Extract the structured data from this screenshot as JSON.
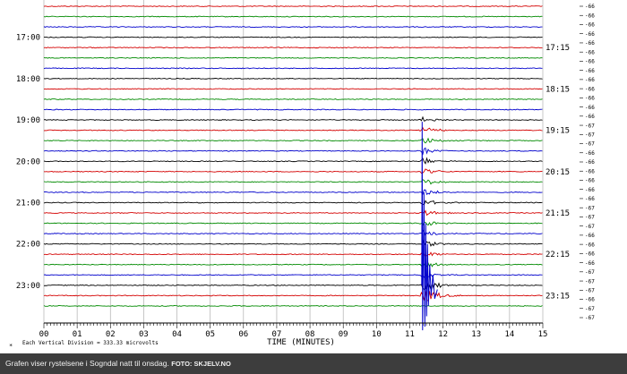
{
  "chart_data": {
    "type": "line",
    "title": "",
    "xlabel": "TIME (MINUTES)",
    "xlim": [
      0,
      15
    ],
    "x_ticks": [
      "00",
      "01",
      "02",
      "03",
      "04",
      "05",
      "06",
      "07",
      "08",
      "09",
      "10",
      "11",
      "12",
      "13",
      "14",
      "15"
    ],
    "left_hour_labels": [
      "17:00",
      "18:00",
      "19:00",
      "20:00",
      "21:00",
      "22:00",
      "23:00"
    ],
    "right_hour_labels": [
      "17:15",
      "18:15",
      "19:15",
      "20:15",
      "21:15",
      "22:15",
      "23:15"
    ],
    "trace_count": 30,
    "trace_colors": [
      "#d40000",
      "#008a00",
      "#0000cc",
      "#000000"
    ],
    "gain_labels": [
      "-66",
      "-66",
      "-66",
      "-66",
      "-66",
      "-66",
      "-66",
      "-66",
      "-66",
      "-66",
      "-66",
      "-66",
      "-66",
      "-67",
      "-67",
      "-67",
      "-66",
      "-66",
      "-66",
      "-66",
      "-66",
      "-66",
      "-67",
      "-67",
      "-67",
      "-66",
      "-66",
      "-66",
      "-66",
      "-67",
      "-67",
      "-67",
      "-66",
      "-67",
      "-67"
    ],
    "event": {
      "start_minute": 11.3,
      "peak_minute": 11.4,
      "coda_end_minute": 13.3,
      "first_trace": 11,
      "last_trace": 28
    },
    "footnote": "Each Vertical Division = 333.33 microvolts",
    "grid": true
  },
  "caption": {
    "text": "Grafen viser rystelsene i Sogndal natt til onsdag.",
    "credit": "FOTO: SKJELV.NO"
  }
}
